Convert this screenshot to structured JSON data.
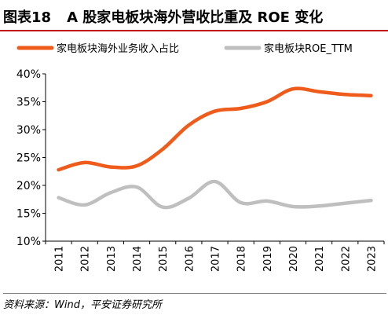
{
  "figure": {
    "number": "图表18",
    "title": "A 股家电板块海外营收比重及 ROE 变化",
    "source": "资料来源：Wind，平安证券研究所"
  },
  "colors": {
    "series1": "#ef5b1b",
    "series2": "#bfbfbf",
    "title_rule": "#c00000",
    "axis": "#000000"
  },
  "chart_data": {
    "type": "line",
    "x": [
      "2011",
      "2012",
      "2013",
      "2014",
      "2015",
      "2016",
      "2017",
      "2018",
      "2019",
      "2020",
      "2021",
      "2022",
      "2023"
    ],
    "series": [
      {
        "name": "家电板块海外业务收入占比",
        "values": [
          22.8,
          24.1,
          23.3,
          23.5,
          26.5,
          30.8,
          33.3,
          33.8,
          35.0,
          37.3,
          36.8,
          36.3,
          36.1
        ]
      },
      {
        "name": "家电板块ROE_TTM",
        "values": [
          17.8,
          16.5,
          18.7,
          19.7,
          16.1,
          17.7,
          20.7,
          16.9,
          17.2,
          16.2,
          16.3,
          16.8,
          17.3
        ]
      }
    ],
    "y_ticks": [
      "10%",
      "15%",
      "20%",
      "25%",
      "30%",
      "35%",
      "40%"
    ],
    "ylim": [
      10,
      40
    ],
    "legend_position": "top",
    "grid": false
  }
}
